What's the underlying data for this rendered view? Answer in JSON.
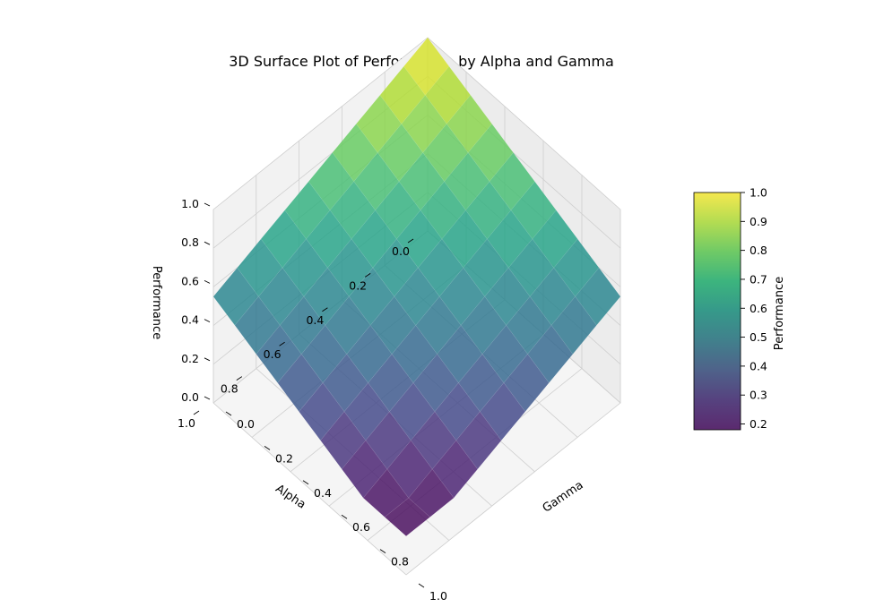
{
  "chart_data": {
    "type": "surface3d",
    "title": "3D Surface Plot of Performance by Alpha and Gamma",
    "xlabel": "Alpha",
    "ylabel": "Gamma",
    "zlabel": "Performance",
    "xlim": [
      0,
      1
    ],
    "ylim": [
      0,
      1
    ],
    "zlim": [
      0,
      1
    ],
    "x_ticks": [
      "0.0",
      "0.2",
      "0.4",
      "0.6",
      "0.8",
      "1.0"
    ],
    "y_ticks": [
      "0.0",
      "0.2",
      "0.4",
      "0.6",
      "0.8",
      "1.0"
    ],
    "z_ticks": [
      "0.0",
      "0.2",
      "0.4",
      "0.6",
      "0.8",
      "1.0"
    ],
    "colormap": "viridis",
    "grid": true,
    "alpha_values": [
      0.0,
      0.1111,
      0.2222,
      0.3333,
      0.4444,
      0.5556,
      0.6667,
      0.7778,
      0.8889,
      1.0
    ],
    "gamma_values": [
      0.0,
      0.1111,
      0.2222,
      0.3333,
      0.4444,
      0.5556,
      0.6667,
      0.7778,
      0.8889,
      1.0
    ],
    "performance": [
      [
        1.0,
        0.95,
        0.9,
        0.85,
        0.8,
        0.75,
        0.7,
        0.65,
        0.6,
        0.55
      ],
      [
        0.95,
        0.9,
        0.85,
        0.8,
        0.75,
        0.7,
        0.65,
        0.6,
        0.55,
        0.5
      ],
      [
        0.9,
        0.85,
        0.8,
        0.75,
        0.7,
        0.65,
        0.6,
        0.55,
        0.5,
        0.45
      ],
      [
        0.85,
        0.8,
        0.75,
        0.7,
        0.65,
        0.6,
        0.55,
        0.5,
        0.45,
        0.4
      ],
      [
        0.8,
        0.75,
        0.7,
        0.65,
        0.6,
        0.55,
        0.5,
        0.45,
        0.4,
        0.35
      ],
      [
        0.75,
        0.7,
        0.65,
        0.6,
        0.55,
        0.5,
        0.45,
        0.4,
        0.35,
        0.3
      ],
      [
        0.7,
        0.65,
        0.6,
        0.55,
        0.5,
        0.45,
        0.4,
        0.35,
        0.3,
        0.25
      ],
      [
        0.65,
        0.6,
        0.55,
        0.5,
        0.45,
        0.4,
        0.35,
        0.3,
        0.25,
        0.2
      ],
      [
        0.6,
        0.55,
        0.5,
        0.45,
        0.4,
        0.35,
        0.3,
        0.25,
        0.2,
        0.2
      ],
      [
        0.55,
        0.5,
        0.45,
        0.4,
        0.35,
        0.3,
        0.25,
        0.2,
        0.2,
        0.2
      ]
    ],
    "colorbar": {
      "label": "Performance",
      "range": [
        0.18,
        1.0
      ],
      "ticks": [
        "0.2",
        "0.3",
        "0.4",
        "0.5",
        "0.6",
        "0.7",
        "0.8",
        "0.9",
        "1.0"
      ]
    }
  }
}
